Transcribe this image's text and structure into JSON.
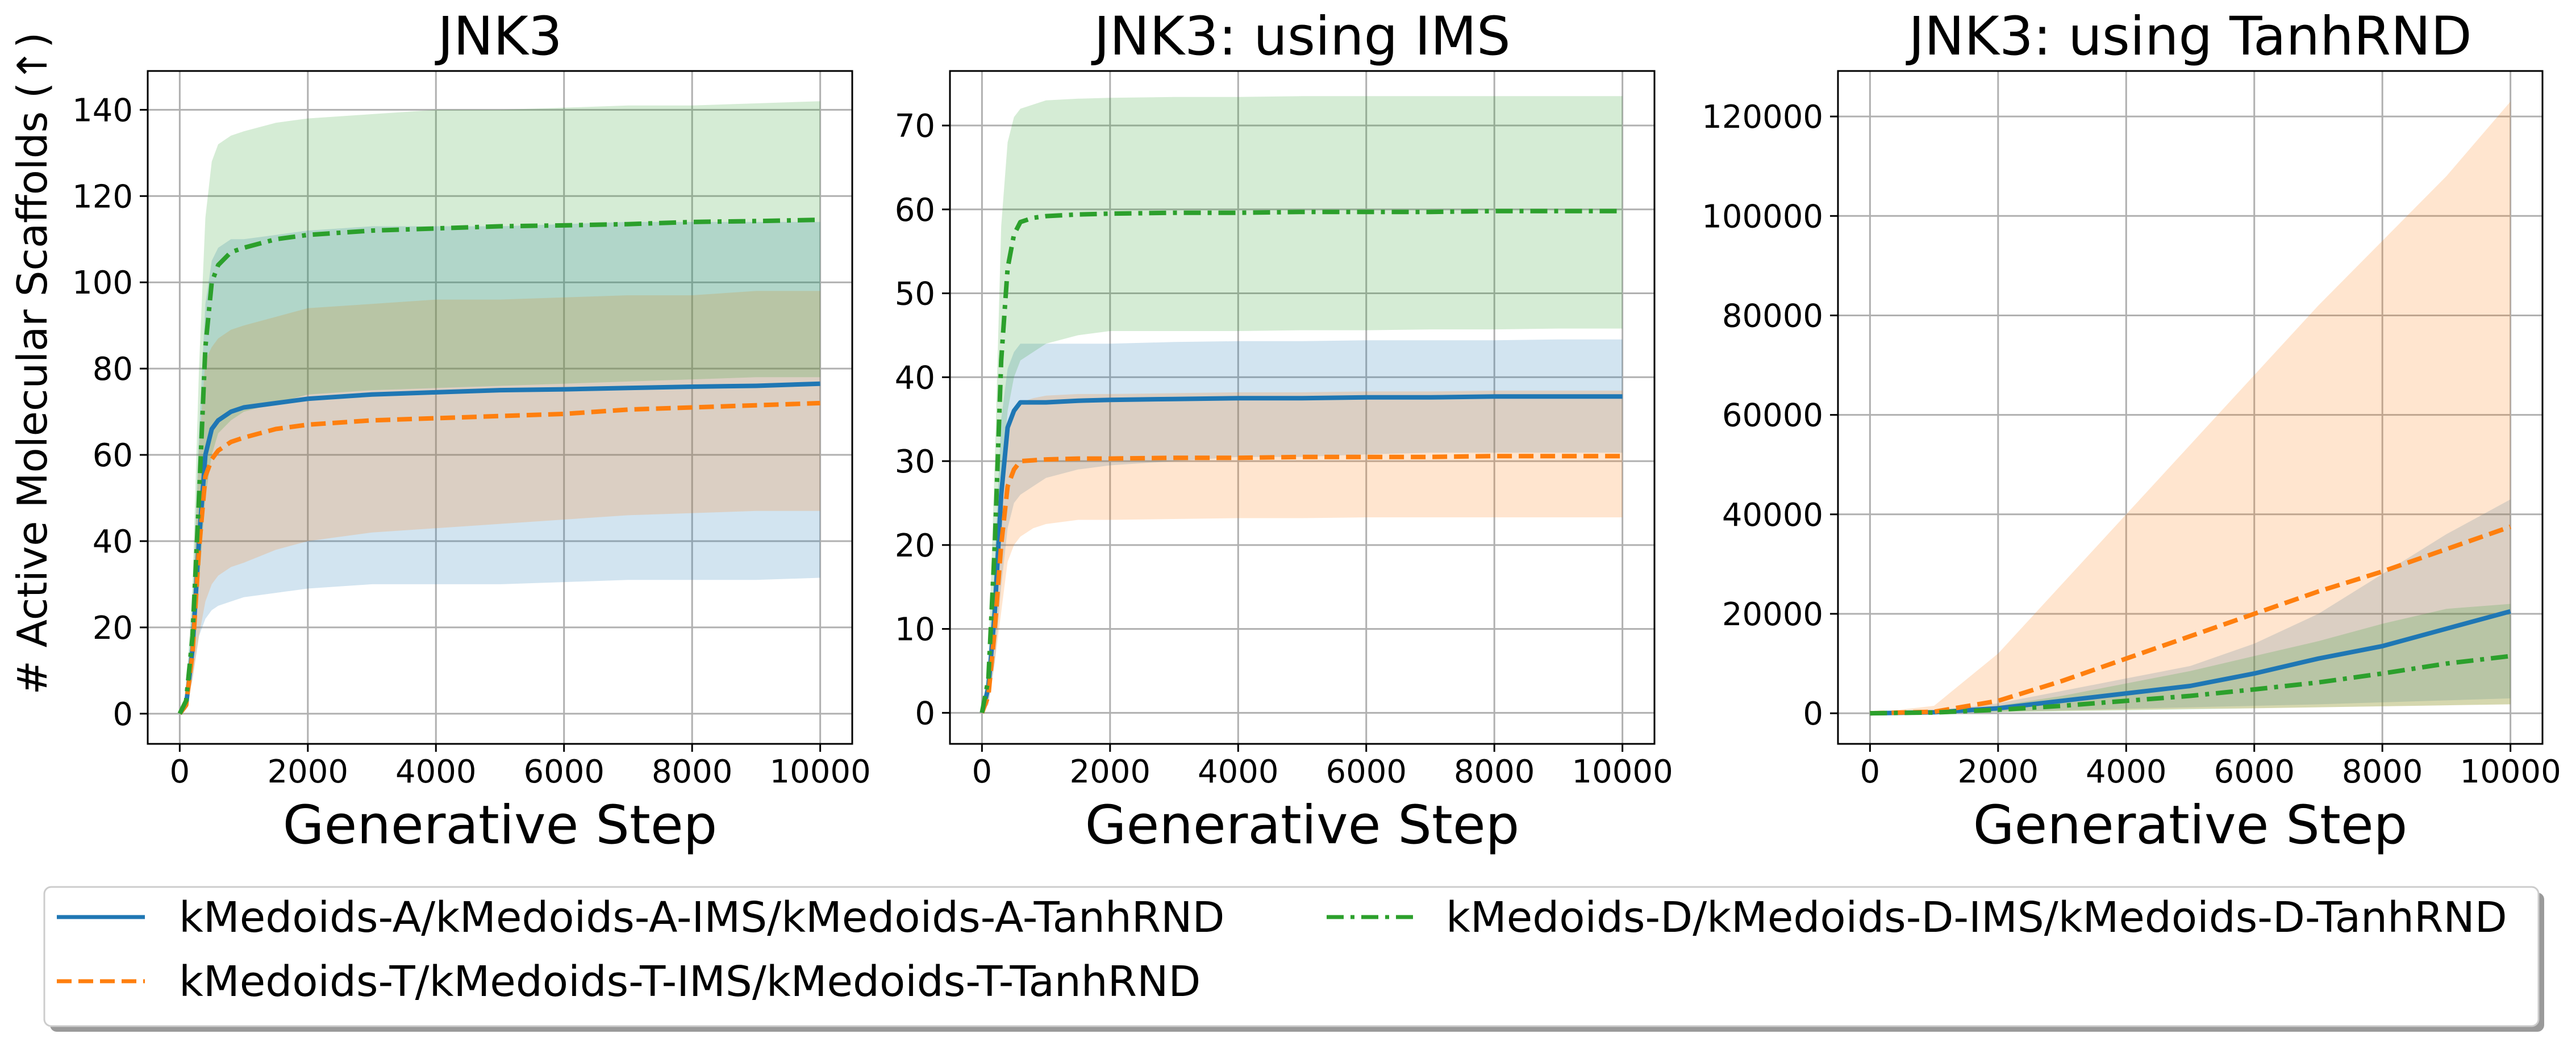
{
  "ylabel_shared": "# Active Molecular Scaffolds (↑)",
  "legend": [
    {
      "label": "kMedoids-A/kMedoids-A-IMS/kMedoids-A-TanhRND",
      "color": "#1f77b4",
      "dash": "solid"
    },
    {
      "label": "kMedoids-T/kMedoids-T-IMS/kMedoids-T-TanhRND",
      "color": "#ff7f0e",
      "dash": "dashed"
    },
    {
      "label": "kMedoids-D/kMedoids-D-IMS/kMedoids-D-TanhRND",
      "color": "#2ca02c",
      "dash": "dashdot"
    }
  ],
  "chart_data": [
    {
      "type": "line",
      "title": "JNK3",
      "xlabel": "Generative Step",
      "ylabel": "# Active Molecular Scaffolds (↑)",
      "xlim": [
        -500,
        10500
      ],
      "ylim": [
        -7,
        149
      ],
      "xticks": [
        0,
        2000,
        4000,
        6000,
        8000,
        10000
      ],
      "yticks": [
        0,
        20,
        40,
        60,
        80,
        100,
        120,
        140
      ],
      "grid": true,
      "x": [
        0,
        100,
        200,
        300,
        400,
        500,
        600,
        800,
        1000,
        1500,
        2000,
        3000,
        4000,
        5000,
        6000,
        7000,
        8000,
        9000,
        10000
      ],
      "series": [
        {
          "mean": [
            0,
            2,
            15,
            40,
            60,
            66,
            68,
            70,
            71,
            72,
            73,
            74,
            74.5,
            75,
            75.2,
            75.5,
            75.8,
            76,
            76.5
          ],
          "lower": [
            0,
            1,
            8,
            18,
            22,
            24,
            25,
            26,
            27,
            28,
            29,
            30,
            30,
            30,
            30.5,
            31,
            31,
            31,
            31.5
          ],
          "upper": [
            0,
            4,
            25,
            65,
            95,
            105,
            108,
            110,
            110,
            111,
            112,
            113,
            113,
            113,
            113.5,
            114,
            114,
            114,
            114
          ]
        },
        {
          "mean": [
            0,
            2,
            14,
            38,
            55,
            59,
            61,
            63,
            64,
            66,
            67,
            68,
            68.5,
            69,
            69.5,
            70.5,
            71,
            71.5,
            72
          ],
          "lower": [
            0,
            1,
            8,
            18,
            26,
            30,
            32,
            34,
            35,
            38,
            40,
            42,
            43,
            44,
            45,
            46,
            46.5,
            47,
            47
          ],
          "upper": [
            0,
            4,
            22,
            62,
            82,
            85,
            87,
            89,
            90,
            92,
            94,
            95,
            96,
            96,
            96.5,
            97,
            97,
            98,
            98
          ]
        },
        {
          "mean": [
            0,
            3,
            18,
            50,
            85,
            100,
            104,
            107,
            108,
            110,
            111,
            112,
            112.5,
            113,
            113.2,
            113.5,
            114,
            114.2,
            114.5
          ],
          "lower": [
            0,
            1,
            10,
            30,
            50,
            60,
            65,
            68,
            70,
            72,
            74,
            75,
            75.5,
            76,
            76.5,
            77,
            77.5,
            78,
            78
          ],
          "upper": [
            0,
            5,
            30,
            80,
            115,
            128,
            132,
            134,
            135,
            137,
            138,
            139,
            140,
            140,
            140.5,
            141,
            141,
            141.5,
            142
          ]
        }
      ]
    },
    {
      "type": "line",
      "title": "JNK3: using IMS",
      "xlabel": "Generative Step",
      "xlim": [
        -500,
        10500
      ],
      "ylim": [
        -3.7,
        76.5
      ],
      "xticks": [
        0,
        2000,
        4000,
        6000,
        8000,
        10000
      ],
      "yticks": [
        0,
        10,
        20,
        30,
        40,
        50,
        60,
        70
      ],
      "grid": true,
      "x": [
        0,
        100,
        200,
        300,
        400,
        500,
        600,
        800,
        1000,
        1500,
        2000,
        3000,
        4000,
        5000,
        6000,
        7000,
        8000,
        9000,
        10000
      ],
      "series": [
        {
          "mean": [
            0,
            3,
            12,
            26,
            34,
            36,
            37,
            37,
            37,
            37.2,
            37.3,
            37.4,
            37.5,
            37.5,
            37.6,
            37.6,
            37.7,
            37.7,
            37.7
          ],
          "lower": [
            0,
            1,
            6,
            15,
            22,
            25,
            26,
            27,
            28,
            29,
            29.5,
            30,
            30.5,
            30.5,
            30.8,
            31,
            31,
            31,
            31
          ],
          "upper": [
            0,
            5,
            18,
            35,
            41,
            43,
            44,
            44,
            44,
            44,
            44,
            44.2,
            44.3,
            44.3,
            44.4,
            44.4,
            44.4,
            44.5,
            44.5
          ]
        },
        {
          "mean": [
            0,
            2,
            10,
            20,
            27,
            29,
            30,
            30.1,
            30.2,
            30.3,
            30.3,
            30.4,
            30.4,
            30.5,
            30.5,
            30.5,
            30.6,
            30.6,
            30.6
          ],
          "lower": [
            0,
            1,
            6,
            12,
            18,
            20,
            21,
            22,
            22.5,
            23,
            23,
            23.1,
            23.2,
            23.2,
            23.3,
            23.3,
            23.3,
            23.3,
            23.3
          ],
          "upper": [
            0,
            3,
            14,
            28,
            34,
            36,
            37,
            37.5,
            37.8,
            38,
            38,
            38.1,
            38.2,
            38.2,
            38.3,
            38.3,
            38.4,
            38.4,
            38.4
          ]
        },
        {
          "mean": [
            0,
            4,
            20,
            42,
            53,
            57,
            58.5,
            59,
            59.2,
            59.4,
            59.5,
            59.6,
            59.6,
            59.7,
            59.7,
            59.7,
            59.8,
            59.8,
            59.8
          ],
          "lower": [
            0,
            2,
            12,
            26,
            36,
            40,
            42,
            43,
            44,
            45,
            45.5,
            45.5,
            45.5,
            45.6,
            45.6,
            45.7,
            45.7,
            45.8,
            45.8
          ],
          "upper": [
            0,
            6,
            30,
            58,
            68,
            71,
            72,
            72.5,
            73,
            73.2,
            73.3,
            73.4,
            73.4,
            73.5,
            73.5,
            73.5,
            73.5,
            73.5,
            73.5
          ]
        }
      ]
    },
    {
      "type": "line",
      "title": "JNK3: using TanhRND",
      "xlabel": "Generative Step",
      "xlim": [
        -500,
        10500
      ],
      "ylim": [
        -6150,
        129150
      ],
      "xticks": [
        0,
        2000,
        4000,
        6000,
        8000,
        10000
      ],
      "yticks": [
        0,
        20000,
        40000,
        60000,
        80000,
        100000,
        120000
      ],
      "grid": true,
      "x": [
        0,
        1000,
        2000,
        3000,
        4000,
        5000,
        6000,
        7000,
        8000,
        9000,
        10000
      ],
      "series": [
        {
          "mean": [
            0,
            200,
            1000,
            2500,
            4000,
            5500,
            8000,
            11000,
            13500,
            17000,
            20500
          ],
          "lower": [
            0,
            100,
            300,
            600,
            900,
            1200,
            1500,
            1800,
            2200,
            2600,
            3000
          ],
          "upper": [
            0,
            400,
            2000,
            4500,
            7000,
            9500,
            14000,
            20000,
            28000,
            36000,
            43000
          ]
        },
        {
          "mean": [
            0,
            300,
            2500,
            6500,
            11000,
            15500,
            20000,
            24500,
            28500,
            33000,
            37500
          ],
          "lower": [
            0,
            100,
            300,
            500,
            700,
            900,
            1000,
            1200,
            1400,
            1600,
            1800
          ],
          "upper": [
            0,
            1500,
            12000,
            26000,
            40000,
            54000,
            68000,
            82000,
            95000,
            108000,
            123000
          ]
        },
        {
          "mean": [
            0,
            150,
            700,
            1500,
            2500,
            3500,
            4800,
            6200,
            8000,
            10000,
            11500
          ],
          "lower": [
            0,
            50,
            200,
            400,
            600,
            800,
            1000,
            1200,
            1400,
            1600,
            1800
          ],
          "upper": [
            0,
            300,
            1500,
            3500,
            6000,
            8500,
            11500,
            14500,
            18000,
            21000,
            22000
          ]
        }
      ]
    }
  ]
}
